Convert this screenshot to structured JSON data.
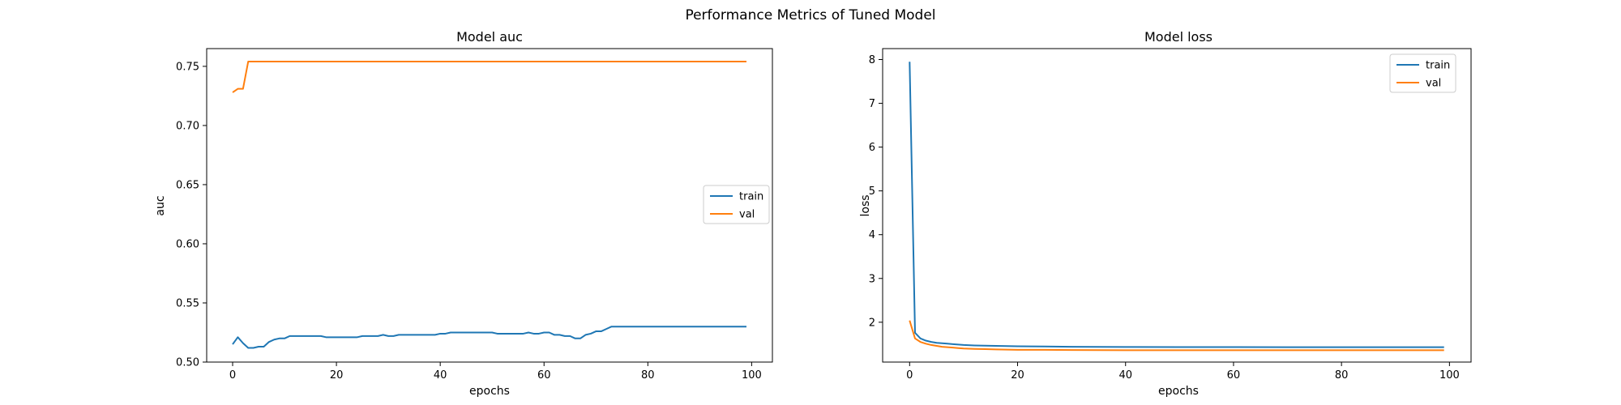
{
  "figure": {
    "title": "Performance Metrics of Tuned Model"
  },
  "chart_data": [
    {
      "type": "line",
      "title": "Model auc",
      "xlabel": "epochs",
      "ylabel": "auc",
      "xlim": [
        -5,
        104
      ],
      "ylim": [
        0.5,
        0.765
      ],
      "xticks": [
        0,
        20,
        40,
        60,
        80,
        100
      ],
      "yticks": [
        0.5,
        0.55,
        0.6,
        0.65,
        0.7,
        0.75
      ],
      "ytick_labels": [
        "0.50",
        "0.55",
        "0.60",
        "0.65",
        "0.70",
        "0.75"
      ],
      "legend": "center-right",
      "grid": false,
      "series": [
        {
          "name": "train",
          "color": "#1f77b4",
          "x": [
            0,
            1,
            2,
            3,
            4,
            5,
            6,
            7,
            8,
            9,
            10,
            11,
            12,
            13,
            14,
            15,
            16,
            17,
            18,
            19,
            20,
            21,
            22,
            23,
            24,
            25,
            26,
            27,
            28,
            29,
            30,
            31,
            32,
            33,
            34,
            35,
            36,
            37,
            38,
            39,
            40,
            41,
            42,
            43,
            44,
            45,
            46,
            47,
            48,
            49,
            50,
            51,
            52,
            53,
            54,
            55,
            56,
            57,
            58,
            59,
            60,
            61,
            62,
            63,
            64,
            65,
            66,
            67,
            68,
            69,
            70,
            71,
            72,
            73,
            74,
            75,
            76,
            77,
            78,
            79,
            80,
            81,
            82,
            83,
            84,
            85,
            86,
            87,
            88,
            89,
            90,
            91,
            92,
            93,
            94,
            95,
            96,
            97,
            98,
            99
          ],
          "y": [
            0.515,
            0.521,
            0.516,
            0.512,
            0.512,
            0.513,
            0.513,
            0.517,
            0.519,
            0.52,
            0.52,
            0.522,
            0.522,
            0.522,
            0.522,
            0.522,
            0.522,
            0.522,
            0.521,
            0.521,
            0.521,
            0.521,
            0.521,
            0.521,
            0.521,
            0.522,
            0.522,
            0.522,
            0.522,
            0.523,
            0.522,
            0.522,
            0.523,
            0.523,
            0.523,
            0.523,
            0.523,
            0.523,
            0.523,
            0.523,
            0.524,
            0.524,
            0.525,
            0.525,
            0.525,
            0.525,
            0.525,
            0.525,
            0.525,
            0.525,
            0.525,
            0.524,
            0.524,
            0.524,
            0.524,
            0.524,
            0.524,
            0.525,
            0.524,
            0.524,
            0.525,
            0.525,
            0.523,
            0.523,
            0.522,
            0.522,
            0.52,
            0.52,
            0.523,
            0.524,
            0.526,
            0.526,
            0.528,
            0.53,
            0.53,
            0.53,
            0.53,
            0.53,
            0.53,
            0.53,
            0.53,
            0.53,
            0.53,
            0.53,
            0.53,
            0.53,
            0.53,
            0.53,
            0.53,
            0.53,
            0.53,
            0.53,
            0.53,
            0.53,
            0.53,
            0.53,
            0.53,
            0.53,
            0.53,
            0.53
          ]
        },
        {
          "name": "val",
          "color": "#ff7f0e",
          "x": [
            0,
            1,
            2,
            3,
            4,
            99
          ],
          "y": [
            0.728,
            0.731,
            0.731,
            0.754,
            0.754,
            0.754
          ]
        }
      ]
    },
    {
      "type": "line",
      "title": "Model loss",
      "xlabel": "epochs",
      "ylabel": "loss",
      "xlim": [
        -5,
        104
      ],
      "ylim": [
        1.09,
        8.25
      ],
      "xticks": [
        0,
        20,
        40,
        60,
        80,
        100
      ],
      "yticks": [
        2,
        3,
        4,
        5,
        6,
        7,
        8
      ],
      "ytick_labels": [
        "2",
        "3",
        "4",
        "5",
        "6",
        "7",
        "8"
      ],
      "legend": "top-right",
      "grid": false,
      "series": [
        {
          "name": "train",
          "color": "#1f77b4",
          "x": [
            0,
            1,
            2,
            3,
            4,
            5,
            6,
            7,
            8,
            9,
            10,
            12,
            14,
            16,
            18,
            20,
            25,
            30,
            35,
            40,
            50,
            60,
            70,
            80,
            90,
            99
          ],
          "y": [
            7.95,
            1.76,
            1.63,
            1.58,
            1.55,
            1.53,
            1.52,
            1.51,
            1.5,
            1.49,
            1.48,
            1.47,
            1.465,
            1.46,
            1.455,
            1.45,
            1.445,
            1.44,
            1.437,
            1.435,
            1.433,
            1.432,
            1.431,
            1.43,
            1.43,
            1.43
          ]
        },
        {
          "name": "val",
          "color": "#ff7f0e",
          "x": [
            0,
            1,
            2,
            3,
            4,
            5,
            6,
            7,
            8,
            9,
            10,
            12,
            14,
            16,
            18,
            20,
            25,
            30,
            40,
            50,
            60,
            70,
            80,
            90,
            99
          ],
          "y": [
            2.04,
            1.63,
            1.55,
            1.51,
            1.48,
            1.46,
            1.44,
            1.43,
            1.42,
            1.41,
            1.4,
            1.39,
            1.385,
            1.38,
            1.375,
            1.37,
            1.37,
            1.365,
            1.36,
            1.36,
            1.36,
            1.36,
            1.36,
            1.36,
            1.36
          ]
        }
      ]
    }
  ]
}
